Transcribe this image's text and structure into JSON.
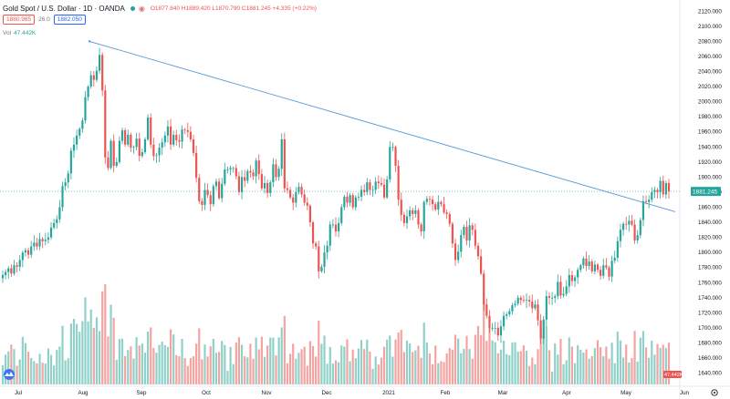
{
  "header": {
    "symbol": "Gold Spot / U.S. Dollar · 1D · OANDA",
    "ohlc": "O1877.840 H1889.420 L1870.790 C1881.245 +4.335 (+0.22%)",
    "sell": "1880.985",
    "spread": "26.0",
    "buy": "1882.050"
  },
  "volume_label": "Vol",
  "volume_value": "47.442K",
  "price_label": "1881.245",
  "vol_label": "47.442K",
  "chart_data": {
    "type": "candlestick",
    "title": "Gold Spot / U.S. Dollar · 1D · OANDA",
    "xlabel": "",
    "ylabel": "",
    "ylim": [
      1625,
      2130
    ],
    "y_ticks": [
      1640,
      1660,
      1680,
      1700,
      1720,
      1740,
      1760,
      1780,
      1800,
      1820,
      1840,
      1860,
      1880,
      1900,
      1920,
      1940,
      1960,
      1980,
      2000,
      2020,
      2040,
      2060,
      2080,
      2100,
      2120
    ],
    "x_ticks": [
      "Jul",
      "Aug",
      "Sep",
      "Oct",
      "Nov",
      "Dec",
      "2021",
      "Feb",
      "Mar",
      "Apr",
      "May",
      "Jun"
    ],
    "closes": [
      1770,
      1774,
      1779,
      1772,
      1783,
      1781,
      1790,
      1800,
      1803,
      1797,
      1808,
      1813,
      1808,
      1818,
      1815,
      1817,
      1820,
      1833,
      1839,
      1844,
      1860,
      1888,
      1893,
      1905,
      1935,
      1943,
      1955,
      1964,
      1975,
      2006,
      2020,
      2035,
      2029,
      2041,
      2062,
      2015,
      1926,
      1912,
      1948,
      1915,
      1920,
      1948,
      1962,
      1943,
      1956,
      1939,
      1940,
      1951,
      1928,
      1933,
      1950,
      1979,
      1943,
      1928,
      1929,
      1939,
      1946,
      1955,
      1967,
      1943,
      1956,
      1949,
      1947,
      1963,
      1962,
      1960,
      1950,
      1932,
      1899,
      1868,
      1863,
      1883,
      1876,
      1864,
      1888,
      1894,
      1872,
      1891,
      1910,
      1910,
      1912,
      1912,
      1901,
      1880,
      1900,
      1895,
      1908,
      1906,
      1901,
      1922,
      1904,
      1885,
      1892,
      1879,
      1893,
      1917,
      1900,
      1911,
      1950,
      1885,
      1883,
      1873,
      1866,
      1880,
      1887,
      1877,
      1866,
      1862,
      1840,
      1812,
      1808,
      1775,
      1781,
      1800,
      1809,
      1837,
      1837,
      1828,
      1839,
      1860,
      1874,
      1866,
      1876,
      1860,
      1873,
      1874,
      1883,
      1880,
      1893,
      1883,
      1883,
      1894,
      1892,
      1890,
      1873,
      1897,
      1940,
      1940,
      1915,
      1870,
      1850,
      1839,
      1848,
      1856,
      1851,
      1856,
      1837,
      1828,
      1867,
      1871,
      1870,
      1864,
      1857,
      1867,
      1864,
      1853,
      1851,
      1838,
      1812,
      1790,
      1801,
      1823,
      1834,
      1816,
      1836,
      1830,
      1809,
      1795,
      1772,
      1731,
      1716,
      1700,
      1700,
      1700,
      1690,
      1702,
      1716,
      1718,
      1722,
      1730,
      1732,
      1740,
      1737,
      1736,
      1737,
      1735,
      1726,
      1731,
      1710,
      1686,
      1711,
      1742,
      1740,
      1740,
      1742,
      1761,
      1743,
      1745,
      1755,
      1770,
      1762,
      1767,
      1777,
      1783,
      1792,
      1782,
      1788,
      1775,
      1784,
      1777,
      1769,
      1783,
      1780,
      1768,
      1789,
      1793,
      1815,
      1830,
      1838,
      1837,
      1842,
      1837,
      1816,
      1823,
      1843,
      1868,
      1867,
      1870,
      1880,
      1883,
      1880,
      1895,
      1877,
      1892,
      1881
    ]
  }
}
